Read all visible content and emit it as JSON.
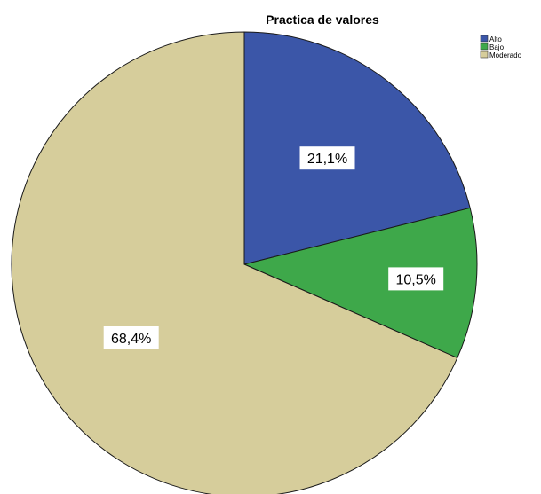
{
  "chart_data": {
    "type": "pie",
    "title": "Practica de valores",
    "start_angle_deg": 0,
    "direction": "clockwise",
    "slices": [
      {
        "label": "Alto",
        "value": 21.1,
        "display": "21,1%",
        "color": "#3b56a8"
      },
      {
        "label": "Bajo",
        "value": 10.5,
        "display": "10,5%",
        "color": "#3ea84a"
      },
      {
        "label": "Moderado",
        "value": 68.4,
        "display": "68,4%",
        "color": "#d6cd9b"
      }
    ],
    "legend_position": "top-right"
  }
}
